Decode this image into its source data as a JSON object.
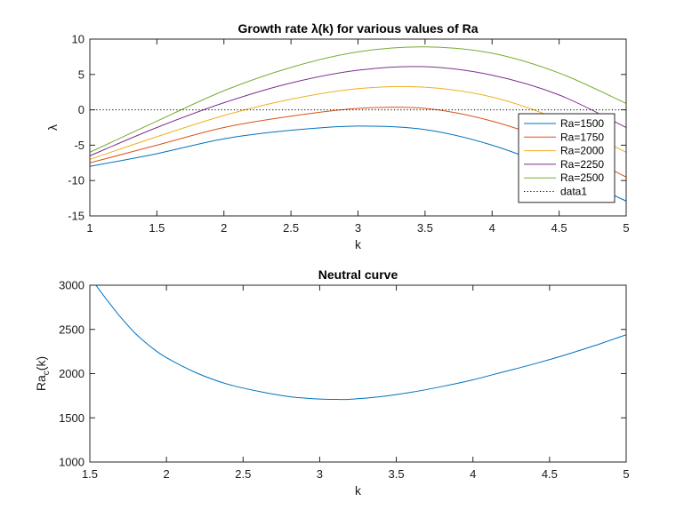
{
  "chart_data": [
    {
      "type": "line",
      "title": "Growth rate λ(k) for various values of Ra",
      "xlabel": "k",
      "ylabel": "λ",
      "xlim": [
        1,
        5
      ],
      "ylim": [
        -15,
        10
      ],
      "xticks": [
        "1",
        "1.5",
        "2",
        "2.5",
        "3",
        "3.5",
        "4",
        "4.5",
        "5"
      ],
      "yticks": [
        "-15",
        "-10",
        "-5",
        "0",
        "5",
        "10"
      ],
      "grid": false,
      "legend_placement": "right",
      "x": [
        1.0,
        1.5,
        2.0,
        2.5,
        3.0,
        3.5,
        4.0,
        4.5,
        5.0
      ],
      "series": [
        {
          "name": "Ra=1500",
          "color": "#0072BD",
          "style": "solid",
          "values": [
            -8.0,
            -6.2,
            -4.1,
            -2.9,
            -2.3,
            -2.8,
            -5.0,
            -8.6,
            -12.9
          ]
        },
        {
          "name": "Ra=1750",
          "color": "#D95319",
          "style": "solid",
          "values": [
            -7.5,
            -5.0,
            -2.5,
            -0.9,
            0.2,
            0.2,
            -1.6,
            -4.9,
            -9.5
          ]
        },
        {
          "name": "Ra=2000",
          "color": "#EDB120",
          "style": "solid",
          "values": [
            -7.0,
            -3.8,
            -0.8,
            1.5,
            3.0,
            3.2,
            1.8,
            -1.4,
            -6.0
          ]
        },
        {
          "name": "Ra=2250",
          "color": "#7E2F8E",
          "style": "solid",
          "values": [
            -6.5,
            -2.5,
            1.0,
            3.8,
            5.6,
            6.1,
            4.9,
            2.1,
            -2.5
          ]
        },
        {
          "name": "Ra=2500",
          "color": "#77AC30",
          "style": "solid",
          "values": [
            -6.0,
            -1.6,
            2.7,
            6.0,
            8.2,
            8.9,
            8.0,
            5.2,
            0.9
          ]
        },
        {
          "name": "data1",
          "color": "#000000",
          "style": "dotted",
          "values": [
            0,
            0,
            0,
            0,
            0,
            0,
            0,
            0,
            0
          ]
        }
      ]
    },
    {
      "type": "line",
      "title": "Neutral curve",
      "xlabel": "k",
      "ylabel": "Ra_c(k)",
      "ylabel_main": "Ra",
      "ylabel_sub": "c",
      "ylabel_tail": "(k)",
      "xlim": [
        1.5,
        5
      ],
      "ylim": [
        1000,
        3000
      ],
      "xticks": [
        "1.5",
        "2",
        "2.5",
        "3",
        "3.5",
        "4",
        "4.5",
        "5"
      ],
      "yticks": [
        "1000",
        "1500",
        "2000",
        "2500",
        "3000"
      ],
      "grid": false,
      "x": [
        1.54,
        1.6,
        1.7,
        1.8,
        1.9,
        2.0,
        2.2,
        2.4,
        2.6,
        2.8,
        3.0,
        3.117,
        3.2,
        3.4,
        3.6,
        3.8,
        4.0,
        4.2,
        4.4,
        4.6,
        4.8,
        5.0
      ],
      "series": [
        {
          "name": "",
          "color": "#0072BD",
          "style": "solid",
          "values": [
            3000,
            2860,
            2640,
            2450,
            2300,
            2180,
            2005,
            1880,
            1800,
            1740,
            1712,
            1708,
            1710,
            1740,
            1790,
            1855,
            1930,
            2020,
            2110,
            2210,
            2320,
            2440
          ]
        }
      ]
    }
  ]
}
